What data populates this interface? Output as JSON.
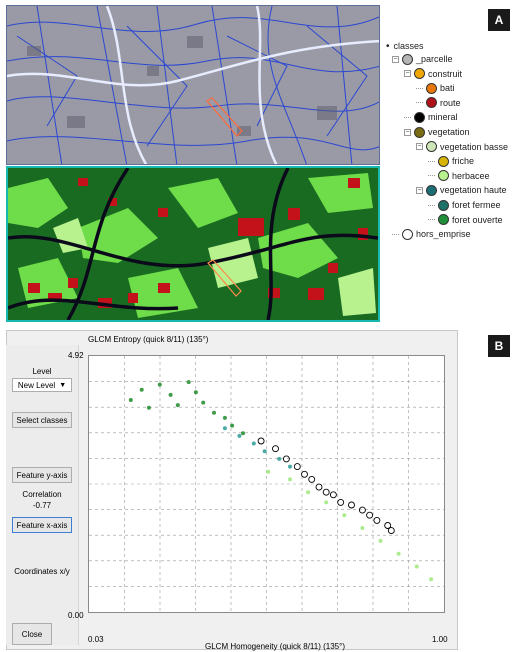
{
  "badges": {
    "a": "A",
    "b": "B"
  },
  "legend": {
    "root": "classes",
    "items": [
      {
        "label": "_parcelle",
        "color": "#b5b5b5",
        "level": 1,
        "toggle": "minus"
      },
      {
        "label": "construit",
        "color": "#f0a800",
        "level": 2,
        "toggle": "minus"
      },
      {
        "label": "bati",
        "color": "#e8780c",
        "level": 3,
        "toggle": ""
      },
      {
        "label": "route",
        "color": "#b01018",
        "level": 3,
        "toggle": ""
      },
      {
        "label": "mineral",
        "color": "#000000",
        "level": 2,
        "toggle": ""
      },
      {
        "label": "vegetation",
        "color": "#7a6c12",
        "level": 2,
        "toggle": "minus"
      },
      {
        "label": "vegetation basse",
        "color": "#cfe6b9",
        "level": 3,
        "toggle": "minus"
      },
      {
        "label": "friche",
        "color": "#d6b400",
        "level": 4,
        "toggle": ""
      },
      {
        "label": "herbacee",
        "color": "#b8f28f",
        "level": 4,
        "toggle": ""
      },
      {
        "label": "vegetation haute",
        "color": "#1b6f74",
        "level": 3,
        "toggle": "minus"
      },
      {
        "label": "foret fermee",
        "color": "#1f7268",
        "level": 4,
        "toggle": ""
      },
      {
        "label": "foret ouverte",
        "color": "#1f8f38",
        "level": 4,
        "toggle": ""
      },
      {
        "label": "hors_emprise",
        "color": "#ffffff",
        "level": 1,
        "toggle": ""
      }
    ]
  },
  "panel": {
    "y_feature": "GLCM Entropy (quick 8/11) (135°)",
    "x_feature": "GLCM Homogeneity (quick 8/11) (135°)",
    "level_label": "Level",
    "level_value": "New Level",
    "select_classes": "Select classes",
    "feature_y": "Feature y-axis",
    "correlation_label": "Correlation",
    "correlation_value": "-0.77",
    "feature_x": "Feature x-axis",
    "coordinates_label": "Coordinates x/y",
    "close": "Close",
    "y_max": "4.92",
    "y_min": "0.00",
    "x_min": "0.03",
    "x_max": "1.00"
  },
  "chart_data": {
    "type": "scatter",
    "xlabel": "GLCM Homogeneity (quick 8/11) (135°)",
    "ylabel": "GLCM Entropy (quick 8/11) (135°)",
    "xlim": [
      0.03,
      1.0
    ],
    "ylim": [
      0.0,
      4.92
    ],
    "grid": true,
    "series": [
      {
        "color": "#1e8a2a",
        "values": [
          [
            0.14,
            4.1
          ],
          [
            0.17,
            4.3
          ],
          [
            0.19,
            3.95
          ],
          [
            0.22,
            4.4
          ],
          [
            0.25,
            4.2
          ],
          [
            0.27,
            4.0
          ],
          [
            0.3,
            4.45
          ],
          [
            0.32,
            4.25
          ],
          [
            0.34,
            4.05
          ],
          [
            0.37,
            3.85
          ],
          [
            0.4,
            3.75
          ],
          [
            0.42,
            3.6
          ],
          [
            0.45,
            3.45
          ]
        ]
      },
      {
        "color": "#2b9a97",
        "values": [
          [
            0.4,
            3.55
          ],
          [
            0.44,
            3.4
          ],
          [
            0.48,
            3.25
          ],
          [
            0.51,
            3.1
          ],
          [
            0.55,
            2.95
          ],
          [
            0.58,
            2.8
          ]
        ]
      },
      {
        "color": "#9ee87a",
        "values": [
          [
            0.52,
            2.7
          ],
          [
            0.58,
            2.55
          ],
          [
            0.63,
            2.3
          ],
          [
            0.68,
            2.1
          ],
          [
            0.73,
            1.85
          ],
          [
            0.78,
            1.6
          ],
          [
            0.83,
            1.35
          ],
          [
            0.88,
            1.1
          ],
          [
            0.93,
            0.85
          ],
          [
            0.97,
            0.6
          ]
        ]
      },
      {
        "color": "#000000",
        "values": [
          [
            0.5,
            3.3
          ],
          [
            0.54,
            3.15
          ],
          [
            0.57,
            2.95
          ],
          [
            0.6,
            2.8
          ],
          [
            0.62,
            2.65
          ],
          [
            0.64,
            2.55
          ],
          [
            0.66,
            2.4
          ],
          [
            0.68,
            2.3
          ],
          [
            0.7,
            2.25
          ],
          [
            0.72,
            2.1
          ],
          [
            0.75,
            2.05
          ],
          [
            0.78,
            1.95
          ],
          [
            0.8,
            1.85
          ],
          [
            0.82,
            1.75
          ],
          [
            0.85,
            1.65
          ],
          [
            0.86,
            1.55
          ]
        ]
      }
    ]
  }
}
